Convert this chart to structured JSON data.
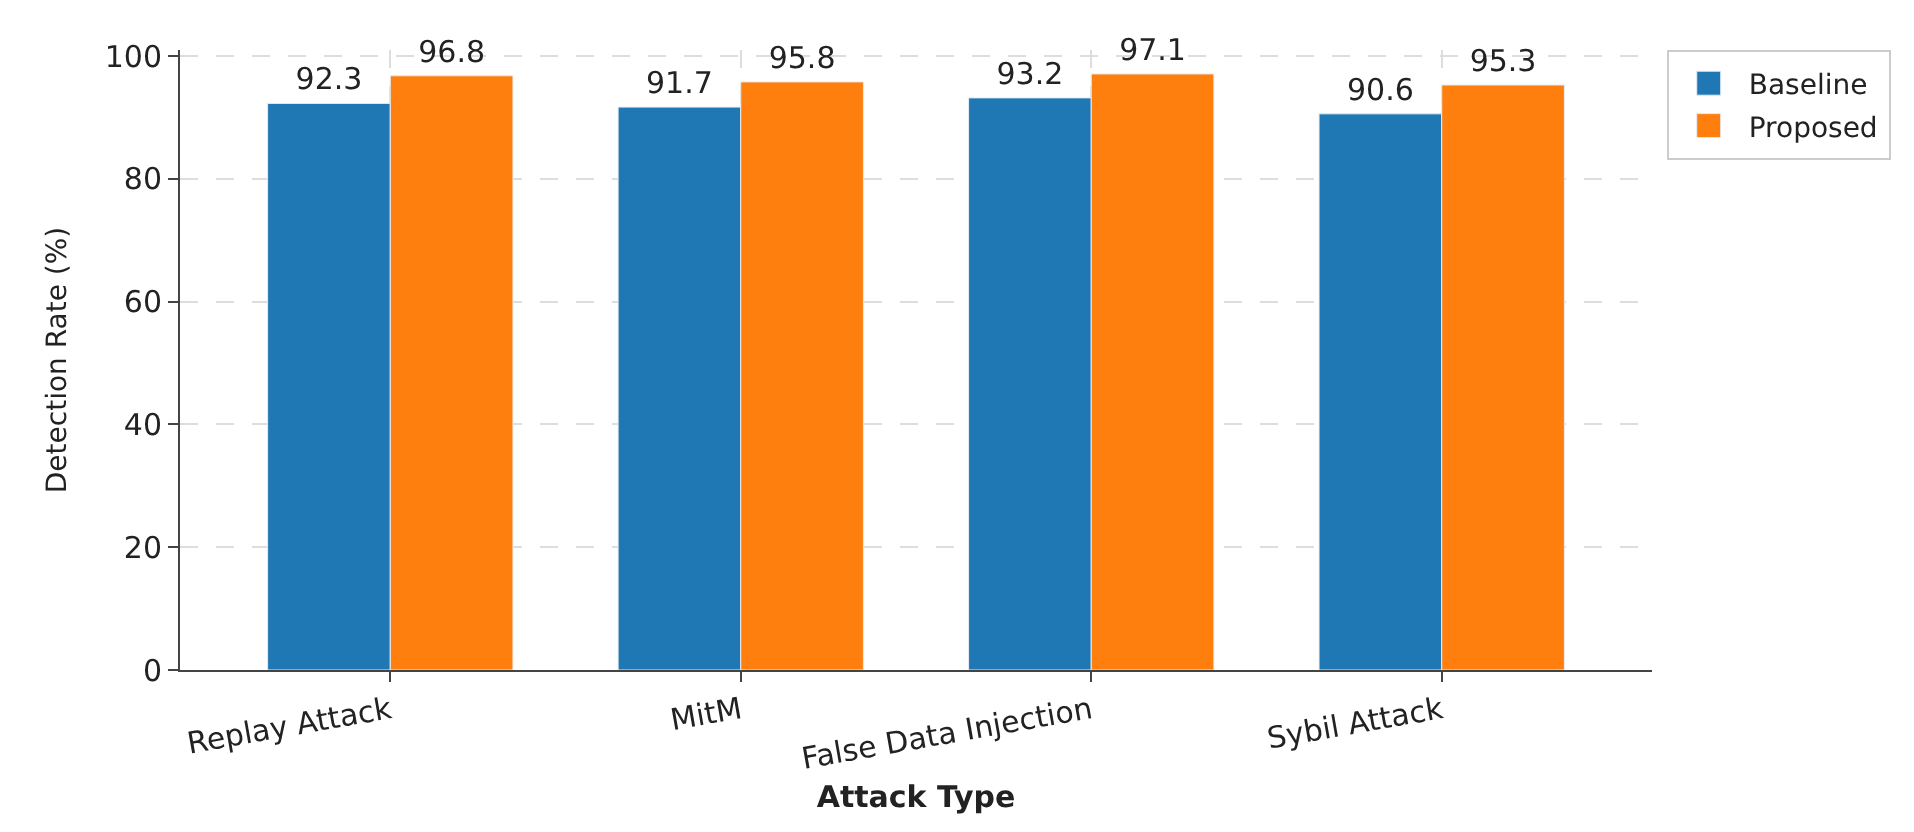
{
  "chart_data": {
    "type": "bar",
    "xlabel": "Attack Type",
    "ylabel": "Detection Rate (%)",
    "categories": [
      "Replay Attack",
      "MitM",
      "False Data Injection",
      "Sybil Attack"
    ],
    "series": [
      {
        "name": "Baseline",
        "color": "#1f77b4",
        "values": [
          92.3,
          91.7,
          93.2,
          90.6
        ]
      },
      {
        "name": "Proposed",
        "color": "#ff7f0e",
        "values": [
          96.8,
          95.8,
          97.1,
          95.3
        ]
      }
    ],
    "ylim": [
      0,
      101
    ],
    "yticks": [
      0,
      20,
      40,
      60,
      80,
      100
    ],
    "grid": true,
    "legend": "top right",
    "data_labels": true
  }
}
